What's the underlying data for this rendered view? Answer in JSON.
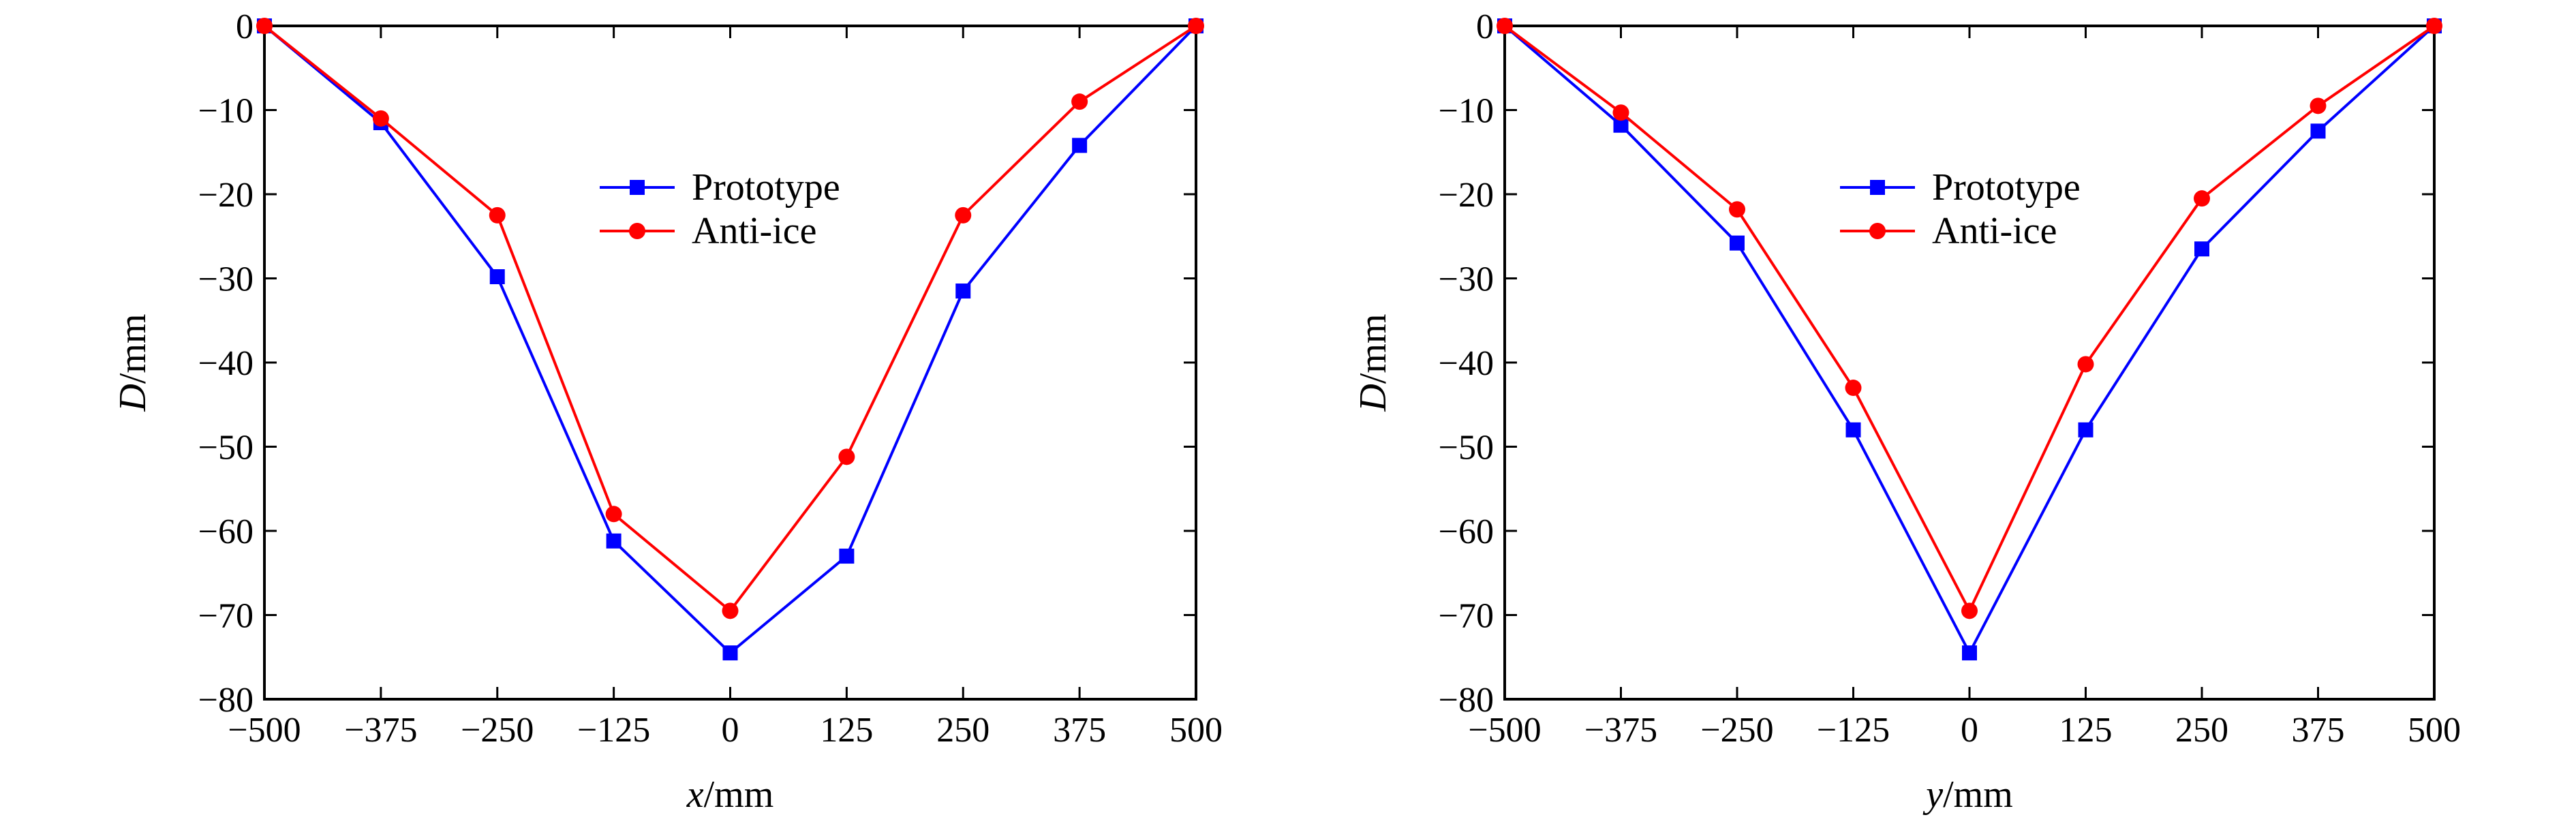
{
  "chart_data": [
    {
      "type": "line",
      "xlabel": "x/mm",
      "xlabel_var": "x",
      "xlabel_unit": "/mm",
      "ylabel": "D/mm",
      "ylabel_var": "D",
      "ylabel_unit": "/mm",
      "xlim": [
        -500,
        500
      ],
      "ylim": [
        -80,
        0
      ],
      "x_ticks": [
        -500,
        -375,
        -250,
        -125,
        0,
        125,
        250,
        375,
        500
      ],
      "x_tick_labels": [
        "−500",
        "−375",
        "−250",
        "−125",
        "0",
        "125",
        "250",
        "375",
        "500"
      ],
      "y_ticks": [
        0,
        -10,
        -20,
        -30,
        -40,
        -50,
        -60,
        -70,
        -80
      ],
      "y_tick_labels": [
        "0",
        "−10",
        "−20",
        "−30",
        "−40",
        "−50",
        "−60",
        "−70",
        "−80"
      ],
      "grid": false,
      "legend": "center",
      "x": [
        -500,
        -375,
        -250,
        -125,
        0,
        125,
        250,
        375,
        500
      ],
      "series": [
        {
          "name": "Prototype",
          "color": "#0000ff",
          "marker": "square",
          "values": [
            0,
            -11.5,
            -29.8,
            -61.2,
            -74.5,
            -63.0,
            -31.5,
            -14.2,
            0
          ]
        },
        {
          "name": "Anti-ice",
          "color": "#ff0000",
          "marker": "circle",
          "values": [
            0,
            -11.0,
            -22.5,
            -58.0,
            -69.5,
            -51.2,
            -22.5,
            -9.0,
            0
          ]
        }
      ]
    },
    {
      "type": "line",
      "xlabel": "y/mm",
      "xlabel_var": "y",
      "xlabel_unit": "/mm",
      "ylabel": "D/mm",
      "ylabel_var": "D",
      "ylabel_unit": "/mm",
      "xlim": [
        -500,
        500
      ],
      "ylim": [
        -80,
        0
      ],
      "x_ticks": [
        -500,
        -375,
        -250,
        -125,
        0,
        125,
        250,
        375,
        500
      ],
      "x_tick_labels": [
        "−500",
        "−375",
        "−250",
        "−125",
        "0",
        "125",
        "250",
        "375",
        "500"
      ],
      "y_ticks": [
        0,
        -10,
        -20,
        -30,
        -40,
        -50,
        -60,
        -70,
        -80
      ],
      "y_tick_labels": [
        "0",
        "−10",
        "−20",
        "−30",
        "−40",
        "−50",
        "−60",
        "−70",
        "−80"
      ],
      "grid": false,
      "legend": "center",
      "x": [
        -500,
        -375,
        -250,
        -125,
        0,
        125,
        250,
        375,
        500
      ],
      "series": [
        {
          "name": "Prototype",
          "color": "#0000ff",
          "marker": "square",
          "values": [
            0,
            -11.8,
            -25.8,
            -48.0,
            -74.5,
            -48.0,
            -26.5,
            -12.5,
            0
          ]
        },
        {
          "name": "Anti-ice",
          "color": "#ff0000",
          "marker": "circle",
          "values": [
            0,
            -10.3,
            -21.8,
            -43.0,
            -69.5,
            -40.2,
            -20.5,
            -9.5,
            0
          ]
        }
      ]
    }
  ]
}
